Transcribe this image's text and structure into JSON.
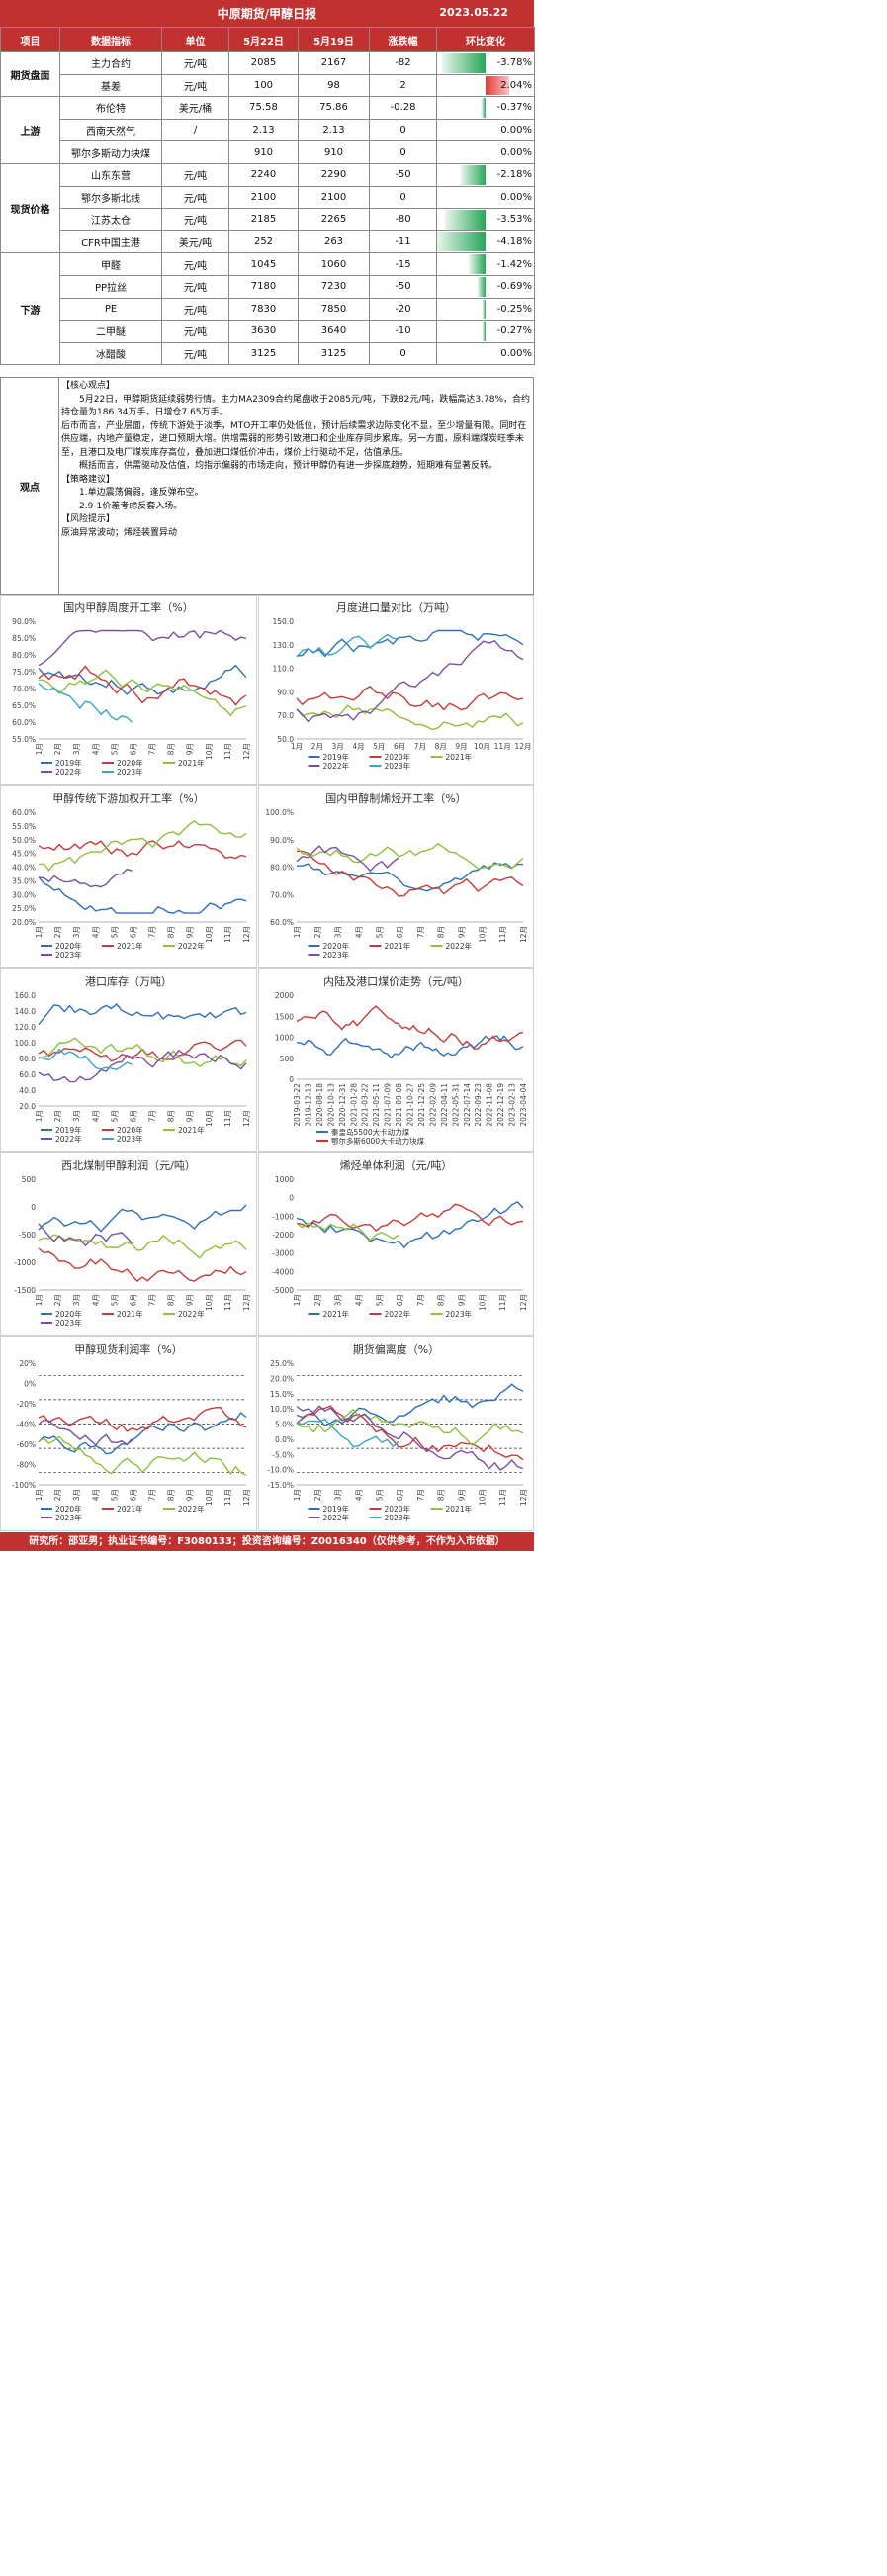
{
  "header": {
    "title": "中原期货/甲醇日报",
    "date": "2023.05.22"
  },
  "table": {
    "columns": [
      "项目",
      "数据指标",
      "单位",
      "5月22日",
      "5月19日",
      "涨跌幅",
      "环比变化"
    ],
    "groups": [
      {
        "name": "期货盘面",
        "rows": [
          {
            "indicator": "主力合约",
            "unit": "元/吨",
            "cur": "2085",
            "prev": "2167",
            "change": "-82",
            "pct": "-3.78%",
            "pct_value": -3.78
          },
          {
            "indicator": "基差",
            "unit": "元/吨",
            "cur": "100",
            "prev": "98",
            "change": "2",
            "pct": "2.04%",
            "pct_value": 2.04
          }
        ]
      },
      {
        "name": "上游",
        "rows": [
          {
            "indicator": "布伦特",
            "unit": "美元/桶",
            "cur": "75.58",
            "prev": "75.86",
            "change": "-0.28",
            "pct": "-0.37%",
            "pct_value": -0.37
          },
          {
            "indicator": "西南天然气",
            "unit": "/",
            "cur": "2.13",
            "prev": "2.13",
            "change": "0",
            "pct": "0.00%",
            "pct_value": 0
          },
          {
            "indicator": "鄂尔多斯动力块煤",
            "unit": "",
            "cur": "910",
            "prev": "910",
            "change": "0",
            "pct": "0.00%",
            "pct_value": 0
          }
        ]
      },
      {
        "name": "现货价格",
        "rows": [
          {
            "indicator": "山东东营",
            "unit": "元/吨",
            "cur": "2240",
            "prev": "2290",
            "change": "-50",
            "pct": "-2.18%",
            "pct_value": -2.18
          },
          {
            "indicator": "鄂尔多斯北线",
            "unit": "元/吨",
            "cur": "2100",
            "prev": "2100",
            "change": "0",
            "pct": "0.00%",
            "pct_value": 0
          },
          {
            "indicator": "江苏太仓",
            "unit": "元/吨",
            "cur": "2185",
            "prev": "2265",
            "change": "-80",
            "pct": "-3.53%",
            "pct_value": -3.53
          },
          {
            "indicator": "CFR中国主港",
            "unit": "美元/吨",
            "cur": "252",
            "prev": "263",
            "change": "-11",
            "pct": "-4.18%",
            "pct_value": -4.18
          }
        ]
      },
      {
        "name": "下游",
        "rows": [
          {
            "indicator": "甲醛",
            "unit": "元/吨",
            "cur": "1045",
            "prev": "1060",
            "change": "-15",
            "pct": "-1.42%",
            "pct_value": -1.42
          },
          {
            "indicator": "PP拉丝",
            "unit": "元/吨",
            "cur": "7180",
            "prev": "7230",
            "change": "-50",
            "pct": "-0.69%",
            "pct_value": -0.69
          },
          {
            "indicator": "PE",
            "unit": "元/吨",
            "cur": "7830",
            "prev": "7850",
            "change": "-20",
            "pct": "-0.25%",
            "pct_value": -0.25
          },
          {
            "indicator": "二甲醚",
            "unit": "元/吨",
            "cur": "3630",
            "prev": "3640",
            "change": "-10",
            "pct": "-0.27%",
            "pct_value": -0.27
          },
          {
            "indicator": "冰醋酸",
            "unit": "元/吨",
            "cur": "3125",
            "prev": "3125",
            "change": "0",
            "pct": "0.00%",
            "pct_value": 0
          }
        ]
      }
    ]
  },
  "view": {
    "label": "观点",
    "lines": [
      "【核心观点】",
      "5月22日，甲醇期货延续弱势行情。主力MA2309合约尾盘收于2085元/吨，下跌82元/吨，跌幅高达3.78%，合约持仓量为186.34万手，日增仓7.65万手。",
      "后市而言，产业层面，传统下游处于淡季，MTO开工率仍处低位，预计后续需求边际变化不显，至少增量有限。同时在供应端，内地产量稳定，进口预期大增。供增需弱的形势引致港口和企业库存同步累库。另一方面，原料端煤炭旺季未至，且港口及电厂煤炭库存高位，叠加进口煤低价冲击，煤价上行驱动不足，估值承压。",
      "概括而言，供需驱动及估值，均指示偏弱的市场走向，预计甲醇仍有进一步探底趋势，短期难有显著反转。",
      "【策略建议】",
      "1.单边震荡偏弱，逢反弹布空。",
      "2.9-1价差考虑反套入场。",
      "【风险提示】",
      "原油异常波动；烯烃装置异动"
    ]
  },
  "charts": [
    {
      "title": "国内甲醇周度开工率（%）",
      "type": "line",
      "y_ticks": [
        "90.0%",
        "85.0%",
        "80.0%",
        "75.0%",
        "70.0%",
        "65.0%",
        "60.0%",
        "55.0%"
      ],
      "x_ticks": [
        "1月",
        "2月",
        "3月",
        "4月",
        "5月",
        "6月",
        "7月",
        "8月",
        "9月",
        "10月",
        "11月",
        "12月"
      ],
      "series": [
        {
          "name": "2019年",
          "color": "#2e6fb7"
        },
        {
          "name": "2020年",
          "color": "#c83a3a"
        },
        {
          "name": "2021年",
          "color": "#8fbf3c"
        },
        {
          "name": "2022年",
          "color": "#7a4fa2"
        },
        {
          "name": "2023年",
          "color": "#3aa4c8"
        }
      ]
    },
    {
      "title": "月度进口量对比（万吨）",
      "type": "line",
      "y_ticks": [
        "150.0",
        "130.0",
        "110.0",
        "90.0",
        "70.0",
        "50.0"
      ],
      "x_ticks": [
        "1月",
        "2月",
        "3月",
        "4月",
        "5月",
        "6月",
        "7月",
        "8月",
        "9月",
        "10月",
        "11月",
        "12月"
      ],
      "series": [
        {
          "name": "2019年",
          "color": "#2e6fb7"
        },
        {
          "name": "2020年",
          "color": "#c83a3a"
        },
        {
          "name": "2021年",
          "color": "#8fbf3c"
        },
        {
          "name": "2022年",
          "color": "#7a4fa2"
        },
        {
          "name": "2023年",
          "color": "#3aa4c8"
        }
      ]
    },
    {
      "title": "甲醇传统下游加权开工率（%）",
      "type": "line",
      "y_ticks": [
        "60.0%",
        "55.0%",
        "50.0%",
        "45.0%",
        "40.0%",
        "35.0%",
        "30.0%",
        "25.0%",
        "20.0%"
      ],
      "x_ticks": [
        "1月",
        "2月",
        "3月",
        "4月",
        "5月",
        "6月",
        "7月",
        "8月",
        "9月",
        "10月",
        "11月",
        "12月"
      ],
      "series": [
        {
          "name": "2020年",
          "color": "#2e6fb7"
        },
        {
          "name": "2021年",
          "color": "#c83a3a"
        },
        {
          "name": "2022年",
          "color": "#8fbf3c"
        },
        {
          "name": "2023年",
          "color": "#7a4fa2"
        }
      ]
    },
    {
      "title": "国内甲醇制烯烃开工率（%）",
      "type": "line",
      "y_ticks": [
        "100.0%",
        "90.0%",
        "80.0%",
        "70.0%",
        "60.0%"
      ],
      "x_ticks": [
        "1月",
        "2月",
        "3月",
        "4月",
        "5月",
        "6月",
        "7月",
        "8月",
        "9月",
        "10月",
        "11月",
        "12月"
      ],
      "series": [
        {
          "name": "2020年",
          "color": "#2e6fb7"
        },
        {
          "name": "2021年",
          "color": "#c83a3a"
        },
        {
          "name": "2022年",
          "color": "#8fbf3c"
        },
        {
          "name": "2023年",
          "color": "#7a4fa2"
        }
      ]
    },
    {
      "title": "港口库存（万吨）",
      "type": "line",
      "y_ticks": [
        "160.0",
        "140.0",
        "120.0",
        "100.0",
        "80.0",
        "60.0",
        "40.0",
        "20.0"
      ],
      "x_ticks": [
        "1月",
        "2月",
        "3月",
        "4月",
        "5月",
        "6月",
        "7月",
        "8月",
        "9月",
        "10月",
        "11月",
        "12月"
      ],
      "series": [
        {
          "name": "2019年",
          "color": "#2e6fb7"
        },
        {
          "name": "2020年",
          "color": "#c83a3a"
        },
        {
          "name": "2021年",
          "color": "#8fbf3c"
        },
        {
          "name": "2022年",
          "color": "#7a4fa2"
        },
        {
          "name": "2023年",
          "color": "#3aa4c8"
        }
      ]
    },
    {
      "title": "内陆及港口煤价走势（元/吨）",
      "type": "line",
      "y_ticks": [
        "2000",
        "1500",
        "1000",
        "500",
        "0"
      ],
      "x_ticks": [
        "2019-03-22",
        "2019-12-13",
        "2020-08-18",
        "2020-10-13",
        "2020-12-31",
        "2021-01-28",
        "2021-03-22",
        "2021-05-11",
        "2021-07-09",
        "2021-09-08",
        "2021-10-27",
        "2021-12-25",
        "2022-02-09",
        "2022-04-11",
        "2022-05-31",
        "2022-07-14",
        "2022-09-23",
        "2022-11-08",
        "2022-12-19",
        "2023-02-13",
        "2023-04-04"
      ],
      "series": [
        {
          "name": "秦皇岛5500大卡动力煤",
          "color": "#2e6fb7"
        },
        {
          "name": "鄂尔多斯6000大卡动力块煤",
          "color": "#c83a3a"
        }
      ]
    },
    {
      "title": "西北煤制甲醇利润（元/吨）",
      "type": "line",
      "y_ticks": [
        "500",
        "0",
        "-500",
        "-1000",
        "-1500"
      ],
      "x_ticks": [
        "1月",
        "2月",
        "3月",
        "4月",
        "5月",
        "6月",
        "7月",
        "8月",
        "9月",
        "10月",
        "11月",
        "12月"
      ],
      "series": [
        {
          "name": "2020年",
          "color": "#2e6fb7"
        },
        {
          "name": "2021年",
          "color": "#c83a3a"
        },
        {
          "name": "2022年",
          "color": "#8fbf3c"
        },
        {
          "name": "2023年",
          "color": "#7a4fa2"
        }
      ]
    },
    {
      "title": "烯烃单体利润（元/吨）",
      "type": "line",
      "y_ticks": [
        "1000",
        "0",
        "-1000",
        "-2000",
        "-3000",
        "-4000",
        "-5000"
      ],
      "x_ticks": [
        "1月",
        "2月",
        "3月",
        "4月",
        "5月",
        "6月",
        "7月",
        "8月",
        "9月",
        "10月",
        "11月",
        "12月"
      ],
      "series": [
        {
          "name": "2021年",
          "color": "#2e6fb7"
        },
        {
          "name": "2022年",
          "color": "#c83a3a"
        },
        {
          "name": "2023年",
          "color": "#8fbf3c"
        }
      ]
    },
    {
      "title": "甲醇现货利润率（%）",
      "type": "line",
      "y_ticks": [
        "20%",
        "0%",
        "-20%",
        "-40%",
        "-60%",
        "-80%",
        "-100%"
      ],
      "x_ticks": [
        "1月",
        "2月",
        "3月",
        "4月",
        "5月",
        "6月",
        "7月",
        "8月",
        "9月",
        "10月",
        "11月",
        "12月"
      ],
      "series": [
        {
          "name": "2020年",
          "color": "#2e6fb7"
        },
        {
          "name": "2021年",
          "color": "#c83a3a"
        },
        {
          "name": "2022年",
          "color": "#8fbf3c"
        },
        {
          "name": "2023年",
          "color": "#7a4fa2"
        }
      ]
    },
    {
      "title": "期货偏离度（%）",
      "type": "line",
      "y_ticks": [
        "25.0%",
        "20.0%",
        "15.0%",
        "10.0%",
        "5.0%",
        "0.0%",
        "-5.0%",
        "-10.0%",
        "-15.0%"
      ],
      "x_ticks": [
        "1月",
        "2月",
        "3月",
        "4月",
        "5月",
        "6月",
        "7月",
        "8月",
        "9月",
        "10月",
        "11月",
        "12月"
      ],
      "series": [
        {
          "name": "2019年",
          "color": "#2e6fb7"
        },
        {
          "name": "2020年",
          "color": "#c83a3a"
        },
        {
          "name": "2021年",
          "color": "#8fbf3c"
        },
        {
          "name": "2022年",
          "color": "#7a4fa2"
        },
        {
          "name": "2023年",
          "color": "#3aa4c8"
        }
      ]
    }
  ],
  "footer": {
    "text": "研究所：邵亚男；执业证书编号：F3080133；投资咨询编号：Z0016340（仅供参考，不作为入市依据）"
  }
}
